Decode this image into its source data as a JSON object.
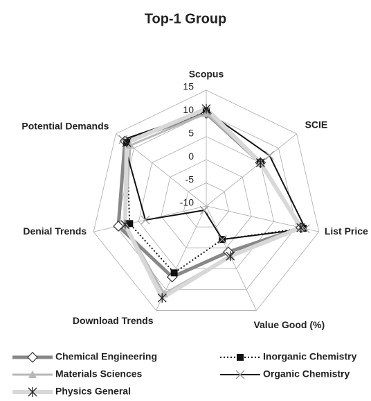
{
  "chart_data": {
    "type": "radar",
    "title": "Top-1 Group",
    "categories": [
      "Scopus",
      "SCIE",
      "List Price",
      "Value Good (%)",
      "Download Trends",
      "Denial Trends",
      "Potential Demands"
    ],
    "ylim": [
      -10,
      15
    ],
    "yticks": [
      -10,
      -5,
      0,
      5,
      10,
      15
    ],
    "grid": true,
    "series": [
      {
        "name": "Chemical Engineering",
        "color": "#888888",
        "marker": "diamond",
        "width": 5,
        "dash": "none",
        "values": [
          10,
          5,
          11,
          1,
          7,
          9.5,
          12.5
        ]
      },
      {
        "name": "Inorganic Chemistry",
        "color": "#111111",
        "marker": "square",
        "width": 2,
        "dash": "dotted",
        "values": [
          10.5,
          5,
          11.5,
          -2,
          6,
          7,
          12
        ]
      },
      {
        "name": "Materials Sciences",
        "color": "#b8b8b8",
        "marker": "triangle",
        "width": 3,
        "dash": "none",
        "values": [
          10,
          5,
          11,
          2,
          11,
          8,
          11
        ]
      },
      {
        "name": "Organic Chemistry",
        "color": "#111111",
        "marker": "x",
        "width": 2,
        "dash": "none",
        "values": [
          10.5,
          7.5,
          12,
          -2,
          -9,
          3.5,
          13
        ]
      },
      {
        "name": "Physics General",
        "color": "#d8d8d8",
        "marker": "star",
        "width": 6,
        "dash": "none",
        "values": [
          11,
          5,
          11,
          2,
          12,
          8,
          12
        ]
      }
    ]
  }
}
